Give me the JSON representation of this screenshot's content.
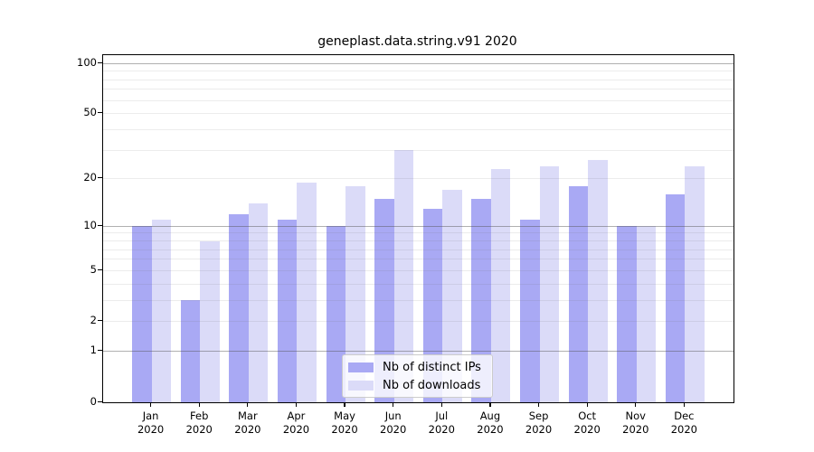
{
  "title": "geneplast.data.string.v91 2020",
  "colors": {
    "ips_bar": "#a9a9f4",
    "downloads_bar": "#dbdbf8",
    "frame": "#000000",
    "major_grid": "#b0b0b0",
    "minor_grid": "#ebebeb"
  },
  "legend": {
    "items": [
      {
        "label": "Nb of distinct IPs",
        "color": "#a9a9f4"
      },
      {
        "label": "Nb of downloads",
        "color": "#dbdbf8"
      }
    ]
  },
  "y_axis": {
    "tick_labels": [
      "100",
      "50",
      "20",
      "10",
      "5",
      "2",
      "1",
      "0"
    ]
  },
  "chart_data": {
    "type": "bar",
    "title": "geneplast.data.string.v91 2020",
    "categories": [
      "Jan",
      "Feb",
      "Mar",
      "Apr",
      "May",
      "Jun",
      "Jul",
      "Aug",
      "Sep",
      "Oct",
      "Nov",
      "Dec"
    ],
    "category_year": "2020",
    "series": [
      {
        "name": "Nb of distinct IPs",
        "color": "#a9a9f4",
        "values": [
          10,
          3,
          12,
          11,
          10,
          15,
          13,
          15,
          11,
          18,
          10,
          16
        ]
      },
      {
        "name": "Nb of downloads",
        "color": "#dbdbf8",
        "values": [
          11,
          8,
          14,
          19,
          18,
          30,
          17,
          23,
          24,
          26,
          10,
          24
        ]
      }
    ],
    "xlabel": "",
    "ylabel": "",
    "y_scale": "log10(1+x)",
    "ylim": [
      0,
      112
    ],
    "y_ticks": [
      0,
      1,
      2,
      5,
      10,
      20,
      50,
      100
    ],
    "major_gridlines": [
      1,
      10,
      100
    ],
    "minor_gridlines": [
      2,
      3,
      4,
      5,
      6,
      7,
      8,
      9,
      20,
      30,
      40,
      50,
      60,
      70,
      80,
      90
    ],
    "grid": true,
    "legend_position": "lower center"
  }
}
